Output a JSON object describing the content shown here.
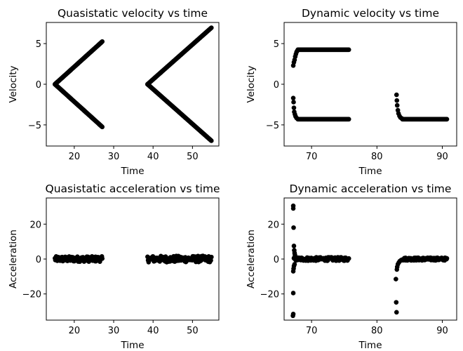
{
  "colors": {
    "marker": "#000000",
    "axes": "#000000",
    "background": "#ffffff"
  },
  "chart_data": [
    {
      "type": "scatter",
      "title": "Quasistatic velocity vs time",
      "xlabel": "Time",
      "ylabel": "Velocity",
      "xlim": [
        12.9,
        56.7
      ],
      "ylim": [
        -7.6,
        7.6
      ],
      "xticks": [
        20,
        30,
        40,
        50
      ],
      "yticks": [
        -5,
        0,
        5
      ],
      "grid": false,
      "segments": [
        {
          "x": [
            15.1,
            27.1
          ],
          "y": [
            0,
            5.25
          ]
        },
        {
          "x": [
            15.1,
            27.1
          ],
          "y": [
            0,
            -5.25
          ]
        },
        {
          "x": [
            38.6,
            54.8
          ],
          "y": [
            0,
            6.95
          ]
        },
        {
          "x": [
            38.6,
            54.8
          ],
          "y": [
            0,
            -6.95
          ]
        }
      ]
    },
    {
      "type": "scatter",
      "title": "Dynamic velocity vs time",
      "xlabel": "Time",
      "ylabel": "Velocity",
      "xlim": [
        65.8,
        92.2
      ],
      "ylim": [
        -7.6,
        7.6
      ],
      "xticks": [
        70,
        80,
        90
      ],
      "yticks": [
        -5,
        0,
        5
      ],
      "grid": false,
      "points": [
        [
          67.2,
          2.3
        ],
        [
          67.3,
          2.7
        ],
        [
          67.4,
          3.0
        ],
        [
          67.5,
          3.4
        ],
        [
          67.6,
          3.7
        ],
        [
          67.7,
          3.95
        ],
        [
          67.8,
          4.1
        ],
        [
          67.2,
          -1.7
        ],
        [
          67.25,
          -2.2
        ],
        [
          67.3,
          -2.9
        ],
        [
          67.35,
          -3.4
        ],
        [
          67.45,
          -3.7
        ],
        [
          67.55,
          -3.95
        ],
        [
          67.7,
          -4.15
        ],
        [
          67.85,
          -4.25
        ],
        [
          83.0,
          -1.3
        ],
        [
          83.05,
          -2.0
        ],
        [
          83.1,
          -2.6
        ],
        [
          83.2,
          -3.2
        ],
        [
          83.3,
          -3.6
        ],
        [
          83.45,
          -3.9
        ],
        [
          83.6,
          -4.1
        ],
        [
          83.8,
          -4.2
        ]
      ],
      "segments": [
        {
          "x": [
            67.9,
            75.7
          ],
          "y": [
            4.25,
            4.25
          ]
        },
        {
          "x": [
            67.9,
            75.7
          ],
          "y": [
            -4.3,
            -4.3
          ]
        },
        {
          "x": [
            83.9,
            90.7
          ],
          "y": [
            -4.3,
            -4.3
          ]
        }
      ]
    },
    {
      "type": "scatter",
      "title": "Quasistatic acceleration vs time",
      "xlabel": "Time",
      "ylabel": "Acceleration",
      "xlim": [
        12.9,
        56.7
      ],
      "ylim": [
        -35,
        35
      ],
      "xticks": [
        20,
        30,
        40,
        50
      ],
      "yticks": [
        -20,
        0,
        20
      ],
      "grid": false,
      "segments": [
        {
          "x": [
            15.1,
            27.1
          ],
          "y": [
            0,
            0
          ],
          "spread": 1.5
        },
        {
          "x": [
            38.6,
            54.8
          ],
          "y": [
            0,
            0
          ],
          "spread": 1.8
        }
      ]
    },
    {
      "type": "scatter",
      "title": "Dynamic acceleration vs time",
      "xlabel": "Time",
      "ylabel": "Acceleration",
      "xlim": [
        65.8,
        92.2
      ],
      "ylim": [
        -35,
        35
      ],
      "xticks": [
        70,
        80,
        90
      ],
      "yticks": [
        -20,
        0,
        20
      ],
      "grid": false,
      "points": [
        [
          67.2,
          30.5
        ],
        [
          67.2,
          29.0
        ],
        [
          67.25,
          18.0
        ],
        [
          67.3,
          7.5
        ],
        [
          67.35,
          5.0
        ],
        [
          67.4,
          3.5
        ],
        [
          67.45,
          2.5
        ],
        [
          67.2,
          -7.0
        ],
        [
          67.25,
          -5.5
        ],
        [
          67.3,
          -4.0
        ],
        [
          67.4,
          -3.0
        ],
        [
          67.2,
          -19.5
        ],
        [
          67.2,
          -31.5
        ],
        [
          67.15,
          -32.5
        ],
        [
          82.9,
          -11.5
        ],
        [
          82.95,
          -24.8
        ],
        [
          83.0,
          -30.5
        ],
        [
          83.05,
          -6.0
        ],
        [
          83.1,
          -4.5
        ],
        [
          83.2,
          -3.0
        ],
        [
          83.35,
          -2.0
        ],
        [
          83.5,
          -1.2
        ],
        [
          83.7,
          -0.6
        ]
      ],
      "segments": [
        {
          "x": [
            67.3,
            75.7
          ],
          "y": [
            0,
            0
          ],
          "spread": 1.0
        },
        {
          "x": [
            83.8,
            90.7
          ],
          "y": [
            0,
            0
          ],
          "spread": 0.8
        }
      ]
    }
  ]
}
